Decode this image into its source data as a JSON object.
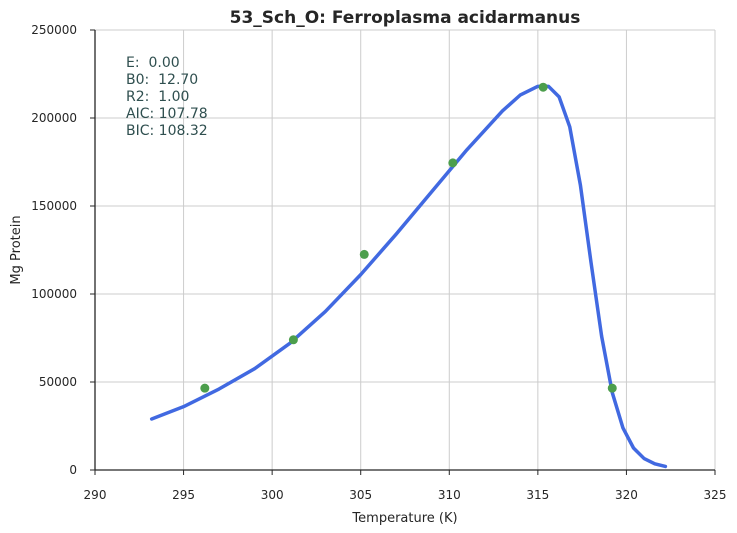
{
  "chart_data": {
    "type": "line",
    "title": "53_Sch_O: Ferroplasma acidarmanus",
    "xlabel": "Temperature (K)",
    "ylabel": "Mg Protein",
    "xlim": [
      290,
      325
    ],
    "ylim": [
      0,
      250000
    ],
    "x_ticks": [
      "290",
      "295",
      "300",
      "305",
      "310",
      "315",
      "320",
      "325"
    ],
    "y_ticks": [
      "0",
      "50000",
      "100000",
      "150000",
      "200000",
      "250000"
    ],
    "grid": true,
    "stats_lines": [
      "E:  0.00",
      "B0:  12.70",
      "R2:  1.00",
      "AIC: 107.78",
      "BIC: 108.32"
    ],
    "series": [
      {
        "type": "scatter",
        "color": "#4c9e4c",
        "points": [
          {
            "x": 296.2,
            "y": 46500
          },
          {
            "x": 301.2,
            "y": 74000
          },
          {
            "x": 305.2,
            "y": 122500
          },
          {
            "x": 310.2,
            "y": 174500
          },
          {
            "x": 315.3,
            "y": 217500
          },
          {
            "x": 319.2,
            "y": 46500
          }
        ]
      },
      {
        "type": "line",
        "color": "#4169e1",
        "points": [
          {
            "x": 293.2,
            "y": 29000
          },
          {
            "x": 295,
            "y": 36000
          },
          {
            "x": 297,
            "y": 46000
          },
          {
            "x": 299,
            "y": 57500
          },
          {
            "x": 301,
            "y": 72000
          },
          {
            "x": 303,
            "y": 90000
          },
          {
            "x": 305,
            "y": 111000
          },
          {
            "x": 307,
            "y": 134000
          },
          {
            "x": 309,
            "y": 158000
          },
          {
            "x": 311,
            "y": 182000
          },
          {
            "x": 313,
            "y": 204000
          },
          {
            "x": 314,
            "y": 213000
          },
          {
            "x": 315,
            "y": 218000
          },
          {
            "x": 315.6,
            "y": 218000
          },
          {
            "x": 316.2,
            "y": 212000
          },
          {
            "x": 316.8,
            "y": 195000
          },
          {
            "x": 317.4,
            "y": 162000
          },
          {
            "x": 318,
            "y": 118000
          },
          {
            "x": 318.6,
            "y": 76000
          },
          {
            "x": 319.2,
            "y": 44000
          },
          {
            "x": 319.8,
            "y": 24000
          },
          {
            "x": 320.4,
            "y": 12500
          },
          {
            "x": 321,
            "y": 6500
          },
          {
            "x": 321.6,
            "y": 3500
          },
          {
            "x": 322.2,
            "y": 2000
          }
        ]
      }
    ]
  }
}
